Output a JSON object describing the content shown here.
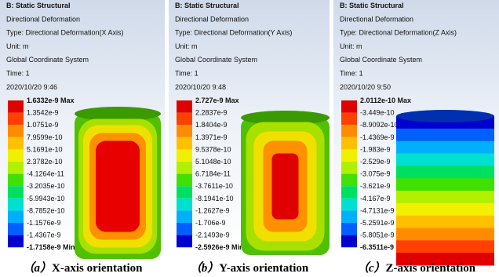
{
  "panels": [
    {
      "header": [
        "B: Static Structural",
        "Directional Deformation",
        "Type: Directional Deformation(X Axis)",
        "Unit: m",
        "Global Coordinate System",
        "Time: 1",
        "2020/10/20 9:46"
      ],
      "legend": [
        "1.6332e-9 Max",
        "1.3542e-9",
        "1.0751e-9",
        "7.9599e-10",
        "5.1691e-10",
        "2.3782e-10",
        "-4.1264e-11",
        "-3.2035e-10",
        "-5.9943e-10",
        "-8.7852e-10",
        "-1.1576e-9",
        "-1.4367e-9",
        "-1.7158e-9 Min"
      ],
      "caption": {
        "label": "（a）",
        "text": "X-axis orientation"
      }
    },
    {
      "header": [
        "B: Static Structural",
        "Directional Deformation",
        "Type: Directional Deformation(Y Axis)",
        "Unit: m",
        "Global Coordinate System",
        "Time: 1",
        "2020/10/20 9:48"
      ],
      "legend": [
        "2.727e-9 Max",
        "2.2837e-9",
        "1.8404e-9",
        "1.3971e-9",
        "9.5378e-10",
        "5.1048e-10",
        "6.7184e-11",
        "-3.7611e-10",
        "-8.1941e-10",
        "-1.2627e-9",
        "-1.706e-9",
        "-2.1493e-9",
        "-2.5926e-9 Min"
      ],
      "caption": {
        "label": "（b）",
        "text": "Y-axis orientation"
      }
    },
    {
      "header": [
        "B: Static Structural",
        "Directional Deformation",
        "Type: Directional Deformation(Z Axis)",
        "Unit: m",
        "Global Coordinate System",
        "Time: 1",
        "2020/10/20 9:50"
      ],
      "legend": [
        "2.0112e-10 Max",
        "-3.449e-10",
        "-8.9092e-10",
        "-1.4369e-9",
        "-1.983e-9",
        "-2.529e-9",
        "-3.075e-9",
        "-3.621e-9",
        "-4.167e-9",
        "-4.7131e-9",
        "-5.2591e-9",
        "-5.8051e-9",
        "-6.3511e-9 Min"
      ],
      "caption": {
        "label": "（c）",
        "text": "Z-axis orientation"
      }
    }
  ]
}
